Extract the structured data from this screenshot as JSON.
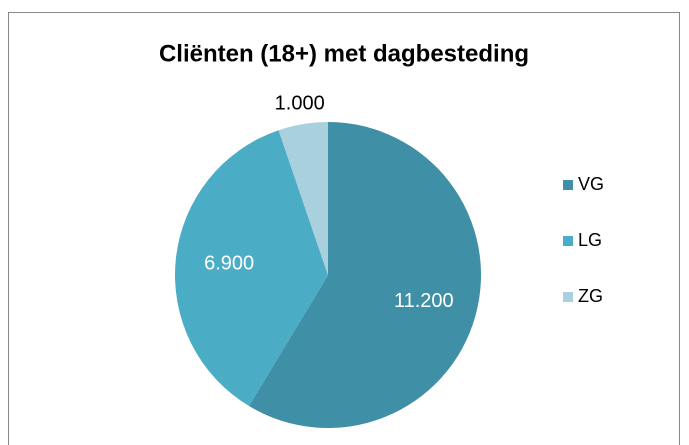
{
  "chart_data": {
    "type": "pie",
    "title": "Cliënten (18+) met dagbesteding",
    "categories": [
      "VG",
      "LG",
      "ZG"
    ],
    "values": [
      11200,
      6900,
      1000
    ],
    "value_labels": [
      "11.200",
      "6.900",
      "1.000"
    ],
    "colors": [
      "#3f8fa6",
      "#4bacc6",
      "#a8d0dd"
    ],
    "legend": "right"
  }
}
